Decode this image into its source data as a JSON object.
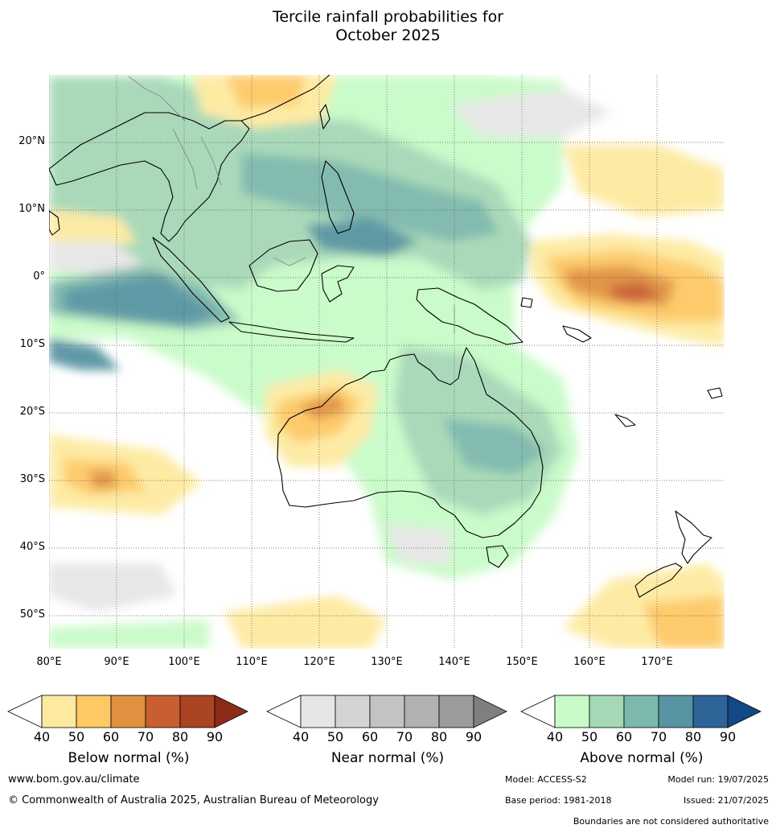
{
  "title_line1": "Tercile rainfall probabilities for",
  "title_line2": "October 2025",
  "lat_labels": [
    "20°N",
    "10°N",
    "0°",
    "10°S",
    "20°S",
    "30°S",
    "40°S",
    "50°S"
  ],
  "lon_labels": [
    "80°E",
    "90°E",
    "100°E",
    "110°E",
    "120°E",
    "130°E",
    "140°E",
    "150°E",
    "160°E",
    "170°E"
  ],
  "colorbars": [
    {
      "title": "Below normal (%)",
      "ticks": [
        "40",
        "50",
        "60",
        "70",
        "80",
        "90"
      ],
      "colors": [
        "#ffffff",
        "#fdeaa0",
        "#fdc965",
        "#e0913f",
        "#c95f30",
        "#aa4424",
        "#8c2c18"
      ]
    },
    {
      "title": "Near normal (%)",
      "ticks": [
        "40",
        "50",
        "60",
        "70",
        "80",
        "90"
      ],
      "colors": [
        "#ffffff",
        "#e6e6e6",
        "#d4d4d4",
        "#c3c3c3",
        "#b1b1b1",
        "#9c9c9c",
        "#7f7f7f"
      ]
    },
    {
      "title": "Above normal (%)",
      "ticks": [
        "40",
        "50",
        "60",
        "70",
        "80",
        "90"
      ],
      "colors": [
        "#ffffff",
        "#c8fbc8",
        "#a5d8b6",
        "#7db8ac",
        "#5994a2",
        "#2f6499",
        "#134887"
      ]
    }
  ],
  "footer": {
    "website": "www.bom.gov.au/climate",
    "copyright": "© Commonwealth of Australia 2025, Australian Bureau of Meteorology",
    "model": "Model: ACCESS-S2",
    "model_run": "Model run: 19/07/2025",
    "base_period": "Base period: 1981-2018",
    "issued": "Issued: 21/07/2025",
    "disclaimer": "Boundaries are not considered authoritative"
  }
}
